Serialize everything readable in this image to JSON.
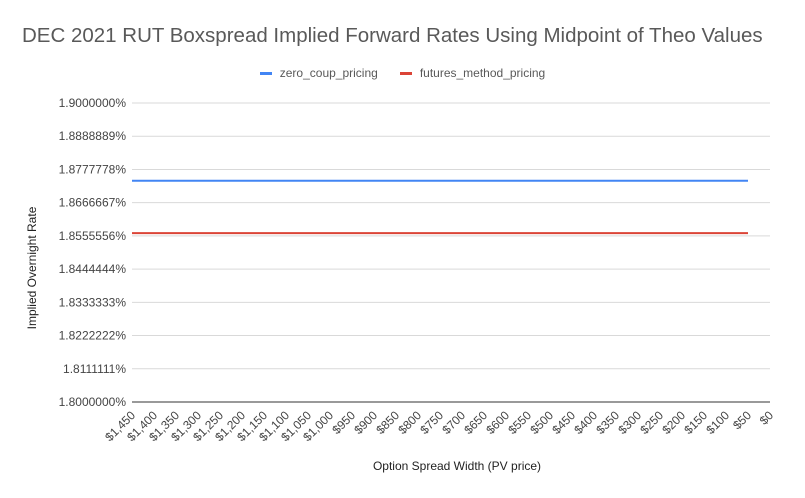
{
  "chart_data": {
    "type": "line",
    "title": "DEC 2021 RUT Boxspread Implied Forward Rates Using Midpoint of Theo Values",
    "xlabel": "Option Spread Width (PV price)",
    "ylabel": "Implied Overnight Rate",
    "ylim": [
      1.8,
      1.9
    ],
    "grid": true,
    "legend": "top",
    "y_ticks": [
      "1.8000000%",
      "1.8111111%",
      "1.8222222%",
      "1.8333333%",
      "1.8444444%",
      "1.8555556%",
      "1.8666667%",
      "1.8777778%",
      "1.8888889%",
      "1.9000000%"
    ],
    "categories": [
      "$1,450",
      "$1,400",
      "$1,350",
      "$1,300",
      "$1,250",
      "$1,200",
      "$1,150",
      "$1,100",
      "$1,050",
      "$1,000",
      "$950",
      "$900",
      "$850",
      "$800",
      "$750",
      "$700",
      "$650",
      "$600",
      "$550",
      "$500",
      "$450",
      "$400",
      "$350",
      "$300",
      "$250",
      "$200",
      "$150",
      "$100",
      "$50",
      "$0"
    ],
    "series": [
      {
        "name": "zero_coup_pricing",
        "color": "#4285f4",
        "values": [
          1.874,
          1.874,
          1.874,
          1.874,
          1.874,
          1.874,
          1.874,
          1.874,
          1.874,
          1.874,
          1.874,
          1.874,
          1.874,
          1.874,
          1.874,
          1.874,
          1.874,
          1.874,
          1.874,
          1.874,
          1.874,
          1.874,
          1.874,
          1.874,
          1.874,
          1.874,
          1.874,
          1.874,
          1.874,
          null
        ]
      },
      {
        "name": "futures_method_pricing",
        "color": "#db4437",
        "values": [
          1.8565,
          1.8565,
          1.8565,
          1.8565,
          1.8565,
          1.8565,
          1.8565,
          1.8565,
          1.8565,
          1.8565,
          1.8565,
          1.8565,
          1.8565,
          1.8565,
          1.8565,
          1.8565,
          1.8565,
          1.8565,
          1.8565,
          1.8565,
          1.8565,
          1.8565,
          1.8565,
          1.8565,
          1.8565,
          1.8565,
          1.8565,
          1.8565,
          1.8565,
          null
        ]
      }
    ]
  }
}
